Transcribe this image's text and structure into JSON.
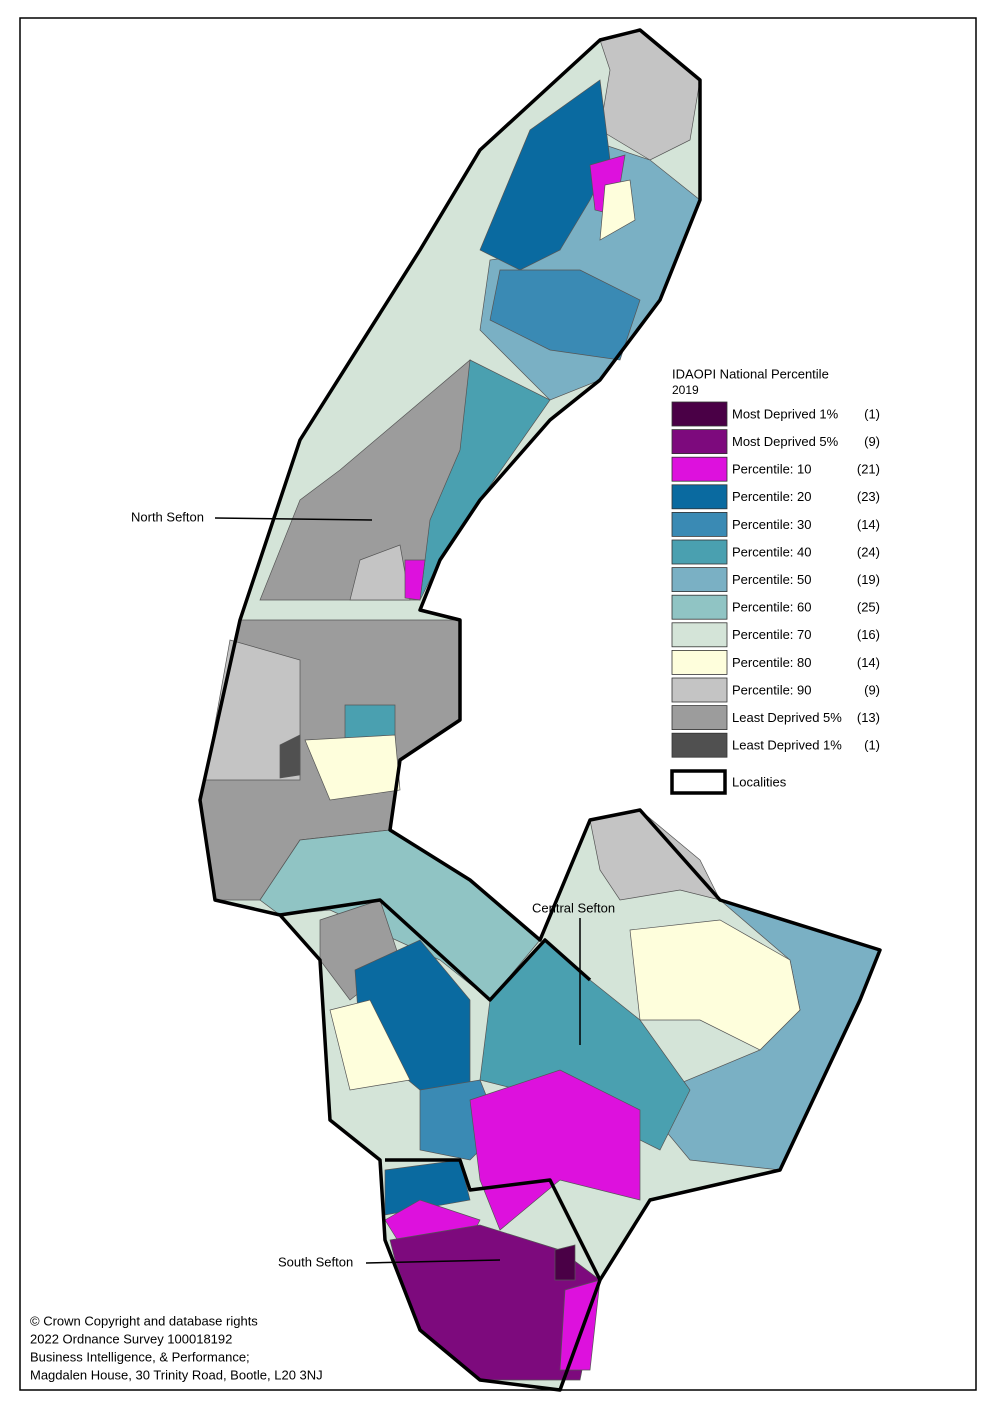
{
  "legend": {
    "title": "IDAOPI National Percentile",
    "subtitle": "2019",
    "items": [
      {
        "label": "Most Deprived 1%",
        "count": "(1)",
        "color": "#4a0046"
      },
      {
        "label": "Most Deprived 5%",
        "count": "(9)",
        "color": "#7d0a7d"
      },
      {
        "label": "Percentile: 10",
        "count": "(21)",
        "color": "#dd11dd"
      },
      {
        "label": "Percentile: 20",
        "count": "(23)",
        "color": "#0a6aa0"
      },
      {
        "label": "Percentile: 30",
        "count": "(14)",
        "color": "#3a8ab4"
      },
      {
        "label": "Percentile: 40",
        "count": "(24)",
        "color": "#4aa0b0"
      },
      {
        "label": "Percentile: 50",
        "count": "(19)",
        "color": "#7ab0c4"
      },
      {
        "label": "Percentile: 60",
        "count": "(25)",
        "color": "#90c4c4"
      },
      {
        "label": "Percentile: 70",
        "count": "(16)",
        "color": "#d4e4d8"
      },
      {
        "label": "Percentile: 80",
        "count": "(14)",
        "color": "#fefedc"
      },
      {
        "label": "Percentile: 90",
        "count": "(9)",
        "color": "#c4c4c4"
      },
      {
        "label": "Least Deprived 5%",
        "count": "(13)",
        "color": "#9c9c9c"
      },
      {
        "label": "Least Deprived 1%",
        "count": "(1)",
        "color": "#505050"
      }
    ],
    "localities_label": "Localities"
  },
  "localities": [
    {
      "label": "North Sefton"
    },
    {
      "label": "Central Sefton"
    },
    {
      "label": "South Sefton"
    }
  ],
  "credits": [
    "© Crown Copyright and database rights",
    "2022 Ordnance Survey 100018192",
    "Business Intelligence, & Performance;",
    "Magdalen House, 30 Trinity Road, Bootle, L20 3NJ"
  ]
}
